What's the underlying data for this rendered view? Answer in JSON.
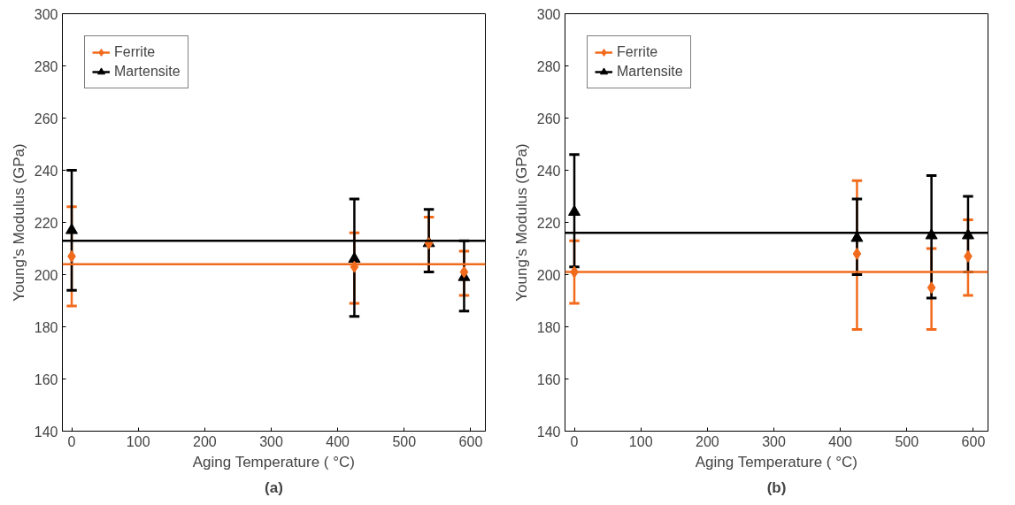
{
  "chart_data": [
    {
      "type": "scatter",
      "xlabel": "Aging Temperature ( °C)",
      "ylabel": "Young's Modulus (GPa)",
      "annotations": [
        "(a)"
      ],
      "xlim": [
        -14,
        622
      ],
      "ylim": [
        140,
        300
      ],
      "xticks": [
        0,
        100,
        200,
        300,
        400,
        500,
        600
      ],
      "yticks": [
        140,
        160,
        180,
        200,
        220,
        240,
        260,
        280,
        300
      ],
      "legend": "top left",
      "x": [
        0,
        425,
        537,
        590
      ],
      "series": [
        {
          "name": "Ferrite",
          "color": "#f26b1d",
          "marker": "diamond",
          "values": [
            207,
            203,
            212,
            201
          ],
          "errors": [
            [
              188,
              226
            ],
            [
              189,
              216
            ],
            [
              201,
              222
            ],
            [
              192,
              209
            ]
          ]
        },
        {
          "name": "Martensite",
          "color": "#000000",
          "marker": "triangle",
          "values": [
            217,
            206,
            212,
            199
          ],
          "errors": [
            [
              194,
              240
            ],
            [
              184,
              229
            ],
            [
              201,
              225
            ],
            [
              186,
              213
            ]
          ]
        }
      ],
      "ref_lines": [
        {
          "axis": "y",
          "value": 204,
          "color": "#f26b1d"
        },
        {
          "axis": "y",
          "value": 213,
          "color": "#000000"
        }
      ]
    },
    {
      "type": "scatter",
      "xlabel": "Aging Temperature ( °C)",
      "ylabel": "Young's Modulus (GPa)",
      "annotations": [
        "(b)"
      ],
      "xlim": [
        -14,
        622
      ],
      "ylim": [
        140,
        300
      ],
      "xticks": [
        0,
        100,
        200,
        300,
        400,
        500,
        600
      ],
      "yticks": [
        140,
        160,
        180,
        200,
        220,
        240,
        260,
        280,
        300
      ],
      "legend": "top left",
      "x": [
        0,
        425,
        537,
        592
      ],
      "series": [
        {
          "name": "Ferrite",
          "color": "#f26b1d",
          "marker": "diamond",
          "values": [
            201,
            208,
            195,
            207
          ],
          "errors": [
            [
              189,
              213
            ],
            [
              179,
              236
            ],
            [
              179,
              210
            ],
            [
              192,
              221
            ]
          ]
        },
        {
          "name": "Martensite",
          "color": "#000000",
          "marker": "triangle",
          "values": [
            224,
            214,
            215,
            215
          ],
          "errors": [
            [
              203,
              246
            ],
            [
              200,
              229
            ],
            [
              191,
              238
            ],
            [
              201,
              230
            ]
          ]
        }
      ],
      "ref_lines": [
        {
          "axis": "y",
          "value": 201,
          "color": "#f26b1d"
        },
        {
          "axis": "y",
          "value": 216,
          "color": "#000000"
        }
      ]
    }
  ]
}
